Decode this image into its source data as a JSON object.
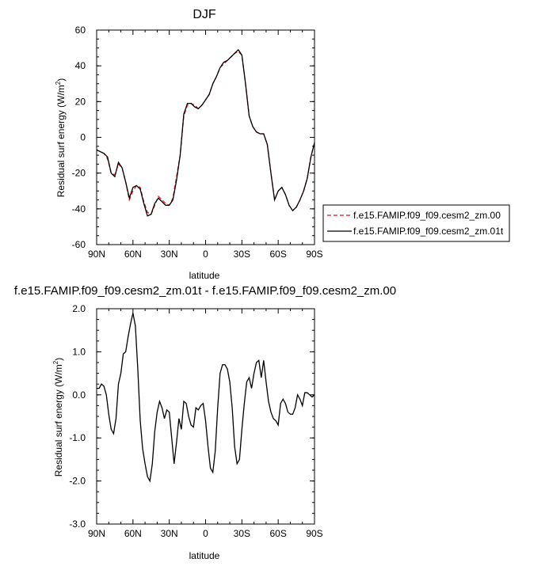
{
  "chart_data": [
    {
      "type": "line",
      "title": "DJF",
      "xlabel": "latitude",
      "ylabel": "Residual surf energy (W/m",
      "ylabel_sup": "2",
      "ylabel_close": ")",
      "xlim": [
        90,
        -90
      ],
      "ylim": [
        -60,
        60
      ],
      "x_ticks": [
        90,
        60,
        30,
        0,
        -30,
        -60,
        -90
      ],
      "x_tick_labels": [
        "90N",
        "60N",
        "30N",
        "0",
        "30S",
        "60S",
        "90S"
      ],
      "y_ticks": [
        -60,
        -40,
        -20,
        0,
        20,
        40,
        60
      ],
      "y_tick_labels": [
        "-60",
        "-40",
        "-20",
        "0",
        "20",
        "40",
        "60"
      ],
      "legend_position": "right",
      "series": [
        {
          "name": "f.e15.FAMIP.f09_f09.cesm2_zm.00",
          "color": "#e8141e",
          "dash": "dashed",
          "x": [
            90,
            87,
            84,
            81,
            78,
            75,
            72,
            69,
            66,
            63,
            60,
            57,
            54,
            51,
            48,
            45,
            42,
            39,
            36,
            33,
            30,
            27,
            24,
            21,
            18,
            15,
            12,
            9,
            6,
            3,
            0,
            -3,
            -6,
            -9,
            -12,
            -15,
            -18,
            -21,
            -24,
            -27,
            -30,
            -33,
            -36,
            -39,
            -42,
            -45,
            -48,
            -51,
            -54,
            -57,
            -60,
            -63,
            -66,
            -69,
            -72,
            -75,
            -78,
            -81,
            -84,
            -87,
            -90
          ],
          "y": [
            -7,
            -8,
            -9,
            -12,
            -20,
            -21,
            -15,
            -17,
            -25,
            -35,
            -30,
            -27,
            -28,
            -36,
            -42,
            -43,
            -38,
            -33,
            -35,
            -37,
            -38,
            -34,
            -22,
            -10,
            12,
            18,
            19,
            18,
            16,
            18,
            21,
            24,
            30,
            34,
            39,
            41,
            43,
            45,
            47,
            48,
            46,
            30,
            12,
            6,
            3,
            2,
            2,
            -4,
            -20,
            -35,
            -30,
            -28,
            -32,
            -38,
            -41,
            -39,
            -35,
            -30,
            -23,
            -11,
            -3
          ]
        },
        {
          "name": "f.e15.FAMIP.f09_f09.cesm2_zm.01t",
          "color": "#000000",
          "dash": "solid",
          "x": [
            90,
            87,
            84,
            81,
            78,
            75,
            72,
            69,
            66,
            63,
            60,
            57,
            54,
            51,
            48,
            45,
            42,
            39,
            36,
            33,
            30,
            27,
            24,
            21,
            18,
            15,
            12,
            9,
            6,
            3,
            0,
            -3,
            -6,
            -9,
            -12,
            -15,
            -18,
            -21,
            -24,
            -27,
            -30,
            -33,
            -36,
            -39,
            -42,
            -45,
            -48,
            -51,
            -54,
            -57,
            -60,
            -63,
            -66,
            -69,
            -72,
            -75,
            -78,
            -81,
            -84,
            -87,
            -90
          ],
          "y": [
            -7,
            -8,
            -9,
            -11,
            -20,
            -22,
            -14,
            -17,
            -25,
            -34,
            -28,
            -27,
            -29,
            -37,
            -44,
            -43,
            -37,
            -34,
            -36,
            -38,
            -38,
            -35,
            -24,
            -10,
            13,
            19,
            19,
            17,
            16,
            18,
            21,
            24,
            30,
            34,
            39,
            42,
            43,
            45,
            47,
            49,
            46,
            30,
            12,
            6,
            3,
            2,
            2,
            -4,
            -20,
            -35,
            -30,
            -28,
            -32,
            -38,
            -41,
            -39,
            -35,
            -30,
            -23,
            -11,
            -3
          ]
        }
      ]
    },
    {
      "type": "line",
      "title": "f.e15.FAMIP.f09_f09.cesm2_zm.01t - f.e15.FAMIP.f09_f09.cesm2_zm.00",
      "xlabel": "latitude",
      "ylabel": "Residual surf energy (W/m",
      "ylabel_sup": "2",
      "ylabel_close": ")",
      "xlim": [
        90,
        -90
      ],
      "ylim": [
        -3.0,
        2.0
      ],
      "x_ticks": [
        90,
        60,
        30,
        0,
        -30,
        -60,
        -90
      ],
      "x_tick_labels": [
        "90N",
        "60N",
        "30N",
        "0",
        "30S",
        "60S",
        "90S"
      ],
      "y_ticks": [
        -3.0,
        -2.0,
        -1.0,
        0.0,
        1.0,
        2.0
      ],
      "y_tick_labels": [
        "-3.0",
        "-2.0",
        "-1.0",
        "0.0",
        "1.0",
        "2.0"
      ],
      "series": [
        {
          "color": "#000000",
          "x": [
            90,
            88,
            86,
            84,
            82,
            80,
            78,
            76,
            74,
            72,
            70,
            68,
            66,
            64,
            62,
            60,
            58,
            56,
            54,
            52,
            50,
            48,
            46,
            44,
            42,
            40,
            38,
            36,
            34,
            32,
            30,
            28,
            26,
            24,
            22,
            20,
            18,
            16,
            14,
            12,
            10,
            8,
            6,
            4,
            2,
            0,
            -2,
            -4,
            -6,
            -8,
            -10,
            -12,
            -14,
            -16,
            -18,
            -20,
            -22,
            -24,
            -26,
            -28,
            -30,
            -32,
            -34,
            -36,
            -38,
            -40,
            -42,
            -44,
            -46,
            -48,
            -50,
            -52,
            -54,
            -56,
            -58,
            -60,
            -62,
            -64,
            -66,
            -68,
            -70,
            -72,
            -74,
            -76,
            -78,
            -80,
            -82,
            -84,
            -86,
            -88,
            -90
          ],
          "y": [
            0.15,
            0.15,
            0.25,
            0.2,
            0.0,
            -0.45,
            -0.8,
            -0.9,
            -0.55,
            0.25,
            0.5,
            0.95,
            1.0,
            1.35,
            1.65,
            1.9,
            1.6,
            0.6,
            -0.6,
            -1.25,
            -1.6,
            -1.9,
            -2.0,
            -1.6,
            -0.85,
            -0.4,
            -0.15,
            -0.3,
            -0.55,
            -0.35,
            -0.4,
            -1.0,
            -1.6,
            -1.1,
            -0.55,
            -0.8,
            -0.15,
            -0.2,
            -0.5,
            -0.7,
            -0.75,
            -0.3,
            -0.35,
            -0.25,
            -0.2,
            -0.6,
            -1.2,
            -1.7,
            -1.8,
            -1.3,
            -0.3,
            0.5,
            0.7,
            0.7,
            0.6,
            0.3,
            -0.3,
            -1.2,
            -1.6,
            -1.5,
            -0.8,
            -0.2,
            0.3,
            0.4,
            0.15,
            0.5,
            0.75,
            0.8,
            0.4,
            0.8,
            0.3,
            -0.15,
            -0.4,
            -0.55,
            -0.6,
            -0.7,
            -0.2,
            -0.1,
            -0.2,
            -0.4,
            -0.45,
            -0.45,
            -0.3,
            0.0,
            -0.1,
            -0.25,
            0.05,
            0.05,
            0.0,
            -0.05,
            0.0
          ]
        }
      ]
    }
  ]
}
